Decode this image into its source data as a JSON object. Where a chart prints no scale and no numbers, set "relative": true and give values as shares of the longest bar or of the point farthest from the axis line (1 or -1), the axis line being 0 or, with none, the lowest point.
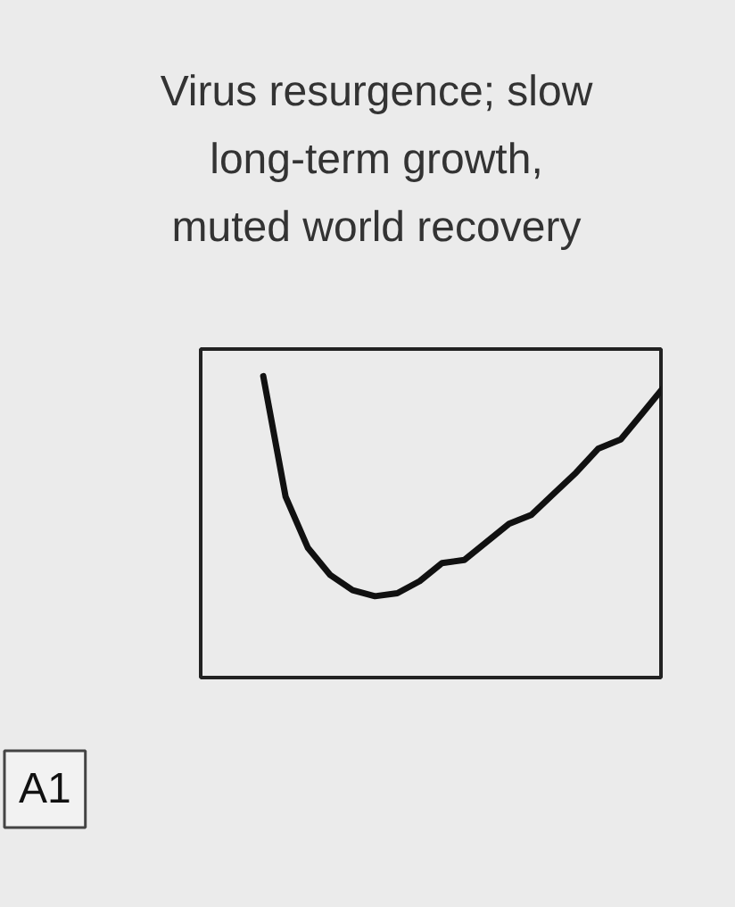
{
  "chart_data": {
    "type": "line",
    "title": "Virus resurgence; slow\nlong-term growth,\nmuted world recovery",
    "relative": true,
    "color": "#111111",
    "marker": "none",
    "grid": false,
    "categories": [
      null,
      null,
      null,
      null,
      null,
      null,
      null,
      null,
      null,
      null,
      null,
      null,
      null,
      null,
      null,
      null,
      null,
      null,
      null
    ],
    "values": [
      1,
      0.6,
      0.43,
      0.34,
      0.29,
      0.27,
      0.28,
      0.32,
      0.38,
      0.39,
      0.45,
      0.51,
      0.54,
      0.61,
      0.68,
      0.76,
      0.79,
      0.88,
      0.97
    ],
    "annotations": [
      "A1"
    ]
  }
}
